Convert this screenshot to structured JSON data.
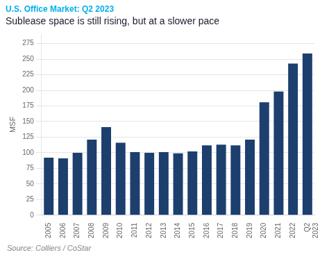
{
  "chart_data": {
    "type": "bar",
    "subtitle": "U.S. Office Market: Q2 2023",
    "title": "Sublease space is still rising, but at a slower pace",
    "ylabel": "MSF",
    "source": "Source: Colliers / CoStar",
    "categories": [
      "2005",
      "2006",
      "2007",
      "2008",
      "2009",
      "2010",
      "2011",
      "2012",
      "2013",
      "2014",
      "2015",
      "2016",
      "2017",
      "2018",
      "2019",
      "2020",
      "2021",
      "2022",
      "Q2\n2023"
    ],
    "values": [
      92,
      91,
      100,
      121,
      141,
      116,
      101,
      100,
      101,
      99,
      102,
      112,
      113,
      112,
      121,
      181,
      198,
      243,
      259
    ],
    "color": "#1c3f6e",
    "ylim": [
      0,
      290
    ],
    "yticks": [
      0,
      25,
      50,
      75,
      100,
      125,
      150,
      175,
      200,
      225,
      250,
      275
    ],
    "grid": true
  }
}
